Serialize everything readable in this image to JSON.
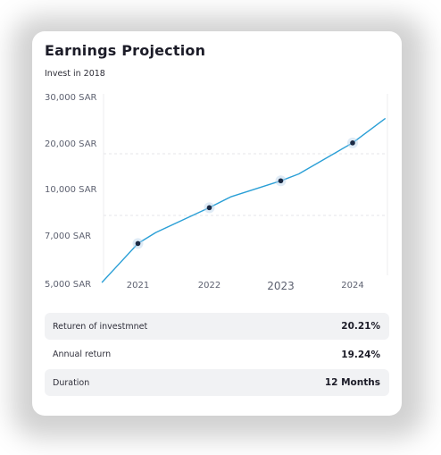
{
  "card": {
    "title": "Earnings Projection",
    "subtitle": "Invest in 2018"
  },
  "chart_data": {
    "type": "line",
    "x_ticks": [
      "2021",
      "2022",
      "2023",
      "2024"
    ],
    "y_ticks": [
      "5,000 SAR",
      "7,000 SAR",
      "10,000 SAR",
      "20,000 SAR",
      "30,000 SAR"
    ],
    "y_tick_values": [
      5000,
      7000,
      10000,
      20000,
      30000
    ],
    "series": [
      {
        "color": "#2a9fd6",
        "x": [
          2020.5,
          2021,
          2021.25,
          2022,
          2022.3,
          2023,
          2023.25,
          2024,
          2024.45
        ],
        "y": [
          5200,
          6800,
          7400,
          9000,
          9700,
          12500,
          14000,
          20800,
          26000
        ]
      }
    ],
    "markers": [
      {
        "x": 2021,
        "y": 6800
      },
      {
        "x": 2022,
        "y": 9000
      },
      {
        "x": 2023,
        "y": 12500
      },
      {
        "x": 2024,
        "y": 20800
      }
    ],
    "grid": "dashed-horizontal",
    "marker_color": "#1b2a44"
  },
  "summary": {
    "rows": [
      {
        "label": "Returen of investmnet",
        "value": "20.21%"
      },
      {
        "label": "Annual return",
        "value": "19.24%"
      },
      {
        "label": "Duration",
        "value": "12 Months"
      }
    ]
  }
}
